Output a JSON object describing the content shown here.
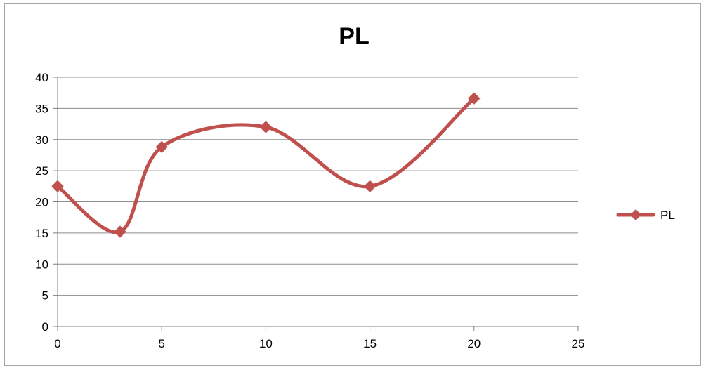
{
  "chart_data": {
    "type": "scatter",
    "subtype": "smoothed-line-with-markers",
    "title": "PL",
    "xlabel": "",
    "ylabel": "",
    "xlim": [
      0,
      25
    ],
    "ylim": [
      0,
      40
    ],
    "x_ticks": [
      0,
      5,
      10,
      15,
      20,
      25
    ],
    "y_ticks": [
      0,
      5,
      10,
      15,
      20,
      25,
      30,
      35,
      40
    ],
    "grid": "horizontal",
    "legend_position": "right",
    "series": [
      {
        "name": "PL",
        "color": "#c0504d",
        "marker": "diamond",
        "points": [
          {
            "x": 0,
            "y": 22.5
          },
          {
            "x": 3,
            "y": 15.2
          },
          {
            "x": 5,
            "y": 28.8
          },
          {
            "x": 10,
            "y": 32.0
          },
          {
            "x": 15,
            "y": 22.5
          },
          {
            "x": 20,
            "y": 36.6
          }
        ]
      }
    ]
  }
}
